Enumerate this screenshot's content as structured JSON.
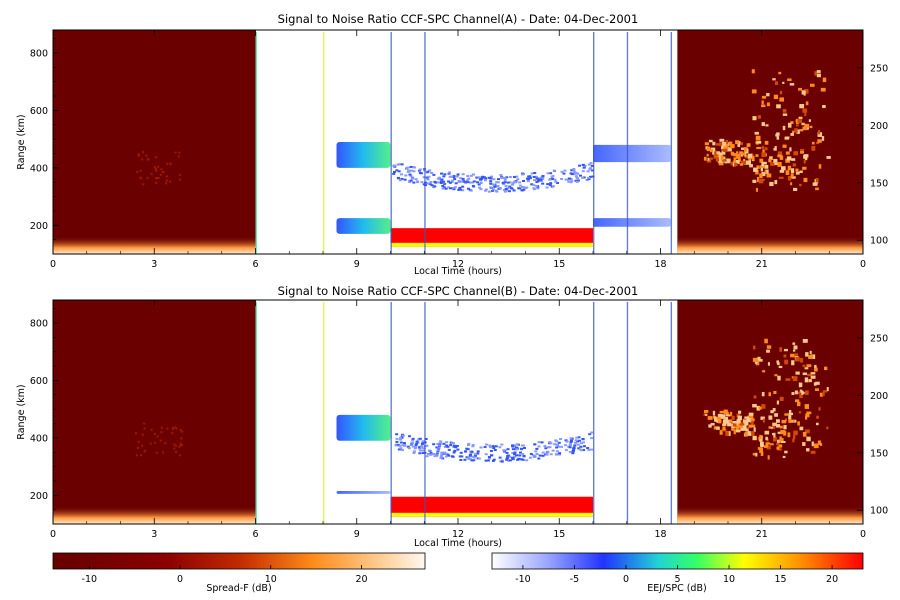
{
  "chart_data": [
    {
      "type": "heatmap",
      "title": "Signal to Noise Ratio CCF-SPC Channel(A) - Date: 04-Dec-2001",
      "xlabel": "Local Time (hours)",
      "ylabel": "Range (km)",
      "x_ticks": [
        "0",
        "3",
        "6",
        "9",
        "12",
        "15",
        "18",
        "21",
        "0"
      ],
      "y_ticks": [
        "200",
        "400",
        "600",
        "800"
      ],
      "y2_ticks": [
        "100",
        "150",
        "200",
        "250"
      ],
      "xlim": [
        0,
        24
      ],
      "ylim": [
        100,
        880
      ],
      "y2lim": [
        88,
        283
      ],
      "regions": [
        {
          "kind": "spread-f",
          "x": [
            0,
            6
          ],
          "y": [
            100,
            880
          ]
        },
        {
          "kind": "spread-f",
          "x": [
            18.5,
            24
          ],
          "y": [
            100,
            880
          ]
        },
        {
          "kind": "eej-spc",
          "x": [
            10,
            16
          ],
          "y": [
            125,
            190
          ],
          "level_db": 22
        },
        {
          "kind": "eej-spc",
          "x": [
            8.4,
            10
          ],
          "y": [
            400,
            490
          ],
          "level_db": 3
        },
        {
          "kind": "eej-spc",
          "x": [
            8.4,
            10
          ],
          "y": [
            170,
            225
          ],
          "level_db": 5
        },
        {
          "kind": "eej-spc",
          "x": [
            16,
            18.3
          ],
          "y": [
            420,
            480
          ],
          "level_db": -6
        },
        {
          "kind": "eej-spc",
          "x": [
            16,
            18.3
          ],
          "y": [
            195,
            225
          ],
          "level_db": -4
        },
        {
          "kind": "eej-spc",
          "x": [
            10,
            16
          ],
          "y": [
            300,
            420
          ],
          "level_db": -7
        }
      ]
    },
    {
      "type": "heatmap",
      "title": "Signal to Noise Ratio CCF-SPC Channel(B) - Date: 04-Dec-2001",
      "xlabel": "Local Time (hours)",
      "ylabel": "Range (km)",
      "x_ticks": [
        "0",
        "3",
        "6",
        "9",
        "12",
        "15",
        "18",
        "21",
        "0"
      ],
      "y_ticks": [
        "200",
        "400",
        "600",
        "800"
      ],
      "y2_ticks": [
        "100",
        "150",
        "200",
        "250"
      ],
      "xlim": [
        0,
        24
      ],
      "ylim": [
        100,
        880
      ],
      "y2lim": [
        88,
        283
      ],
      "regions": [
        {
          "kind": "spread-f",
          "x": [
            0,
            6
          ],
          "y": [
            100,
            880
          ]
        },
        {
          "kind": "spread-f",
          "x": [
            18.5,
            24
          ],
          "y": [
            100,
            880
          ]
        },
        {
          "kind": "eej-spc",
          "x": [
            10,
            16
          ],
          "y": [
            125,
            195
          ],
          "level_db": 22
        },
        {
          "kind": "eej-spc",
          "x": [
            8.4,
            10
          ],
          "y": [
            390,
            480
          ],
          "level_db": 0
        },
        {
          "kind": "eej-spc",
          "x": [
            8.4,
            10
          ],
          "y": [
            205,
            215
          ],
          "level_db": -7
        },
        {
          "kind": "eej-spc",
          "x": [
            10,
            16
          ],
          "y": [
            300,
            420
          ],
          "level_db": -7
        }
      ]
    }
  ],
  "colorbars": [
    {
      "label": "Spread-F (dB)",
      "ticks": [
        "-10",
        "0",
        "10",
        "20"
      ],
      "range": [
        -14,
        27
      ],
      "colors": [
        "#660000",
        "#8a0000",
        "#c22a00",
        "#ff8c1a",
        "#ffc98c",
        "#fff8f0"
      ]
    },
    {
      "label": "EEJ/SPC (dB)",
      "ticks": [
        "-10",
        "-5",
        "0",
        "5",
        "10",
        "15",
        "20"
      ],
      "range": [
        -13,
        23
      ],
      "colors": [
        "#ffffff",
        "#9aa6ff",
        "#2233ff",
        "#22d4d4",
        "#33ff66",
        "#ffff00",
        "#ff9900",
        "#ff0000"
      ]
    }
  ]
}
